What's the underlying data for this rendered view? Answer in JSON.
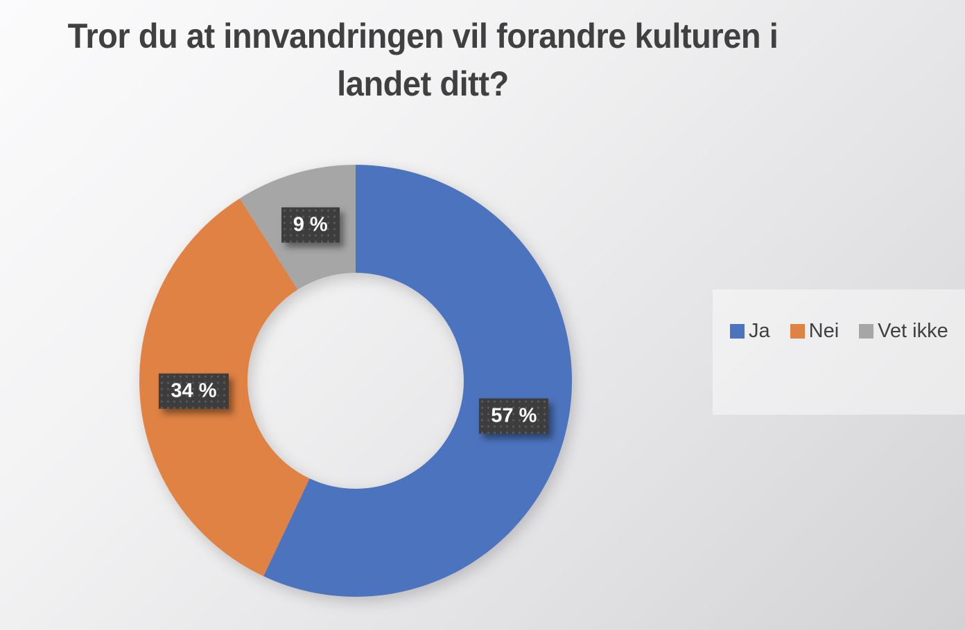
{
  "chart": {
    "title_line1": "Tror du at innvandringen vil forandre kulturen i",
    "title_line2": "landet ditt?"
  },
  "chart_data": {
    "type": "pie",
    "subtype": "donut",
    "title": "Tror du at innvandringen vil forandre kulturen i landet ditt?",
    "categories": [
      "Ja",
      "Nei",
      "Vet ikke"
    ],
    "values": [
      57,
      34,
      9
    ],
    "unit": "%",
    "data_labels": [
      "57 %",
      "34 %",
      "9 %"
    ],
    "colors": [
      "#4C73BD",
      "#DF8244",
      "#A6A6A6"
    ],
    "label_box_color": "#3D3D3D",
    "label_text_color": "#FFFFFF",
    "start_angle_deg": 0,
    "direction": "clockwise",
    "donut_hole_ratio": 0.5,
    "legend_position": "right",
    "grid": false
  },
  "legend": {
    "items": [
      {
        "label": "Ja",
        "color": "#4C73BD"
      },
      {
        "label": "Nei",
        "color": "#DF8244"
      },
      {
        "label": "Vet ikke",
        "color": "#A6A6A6"
      }
    ]
  }
}
